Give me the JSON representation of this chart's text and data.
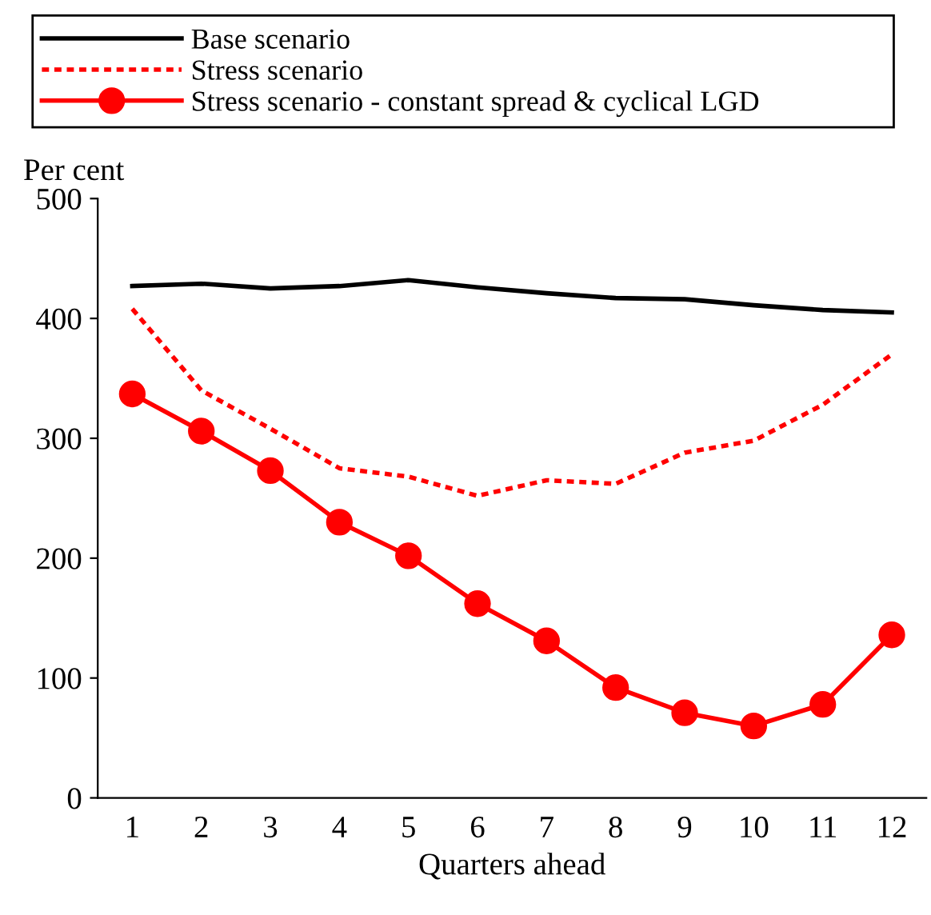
{
  "chart_data": {
    "type": "line",
    "ylabel": "Per cent",
    "xlabel": "Quarters ahead",
    "categories": [
      "1",
      "2",
      "3",
      "4",
      "5",
      "6",
      "7",
      "8",
      "9",
      "10",
      "11",
      "12"
    ],
    "series": [
      {
        "name": "Base scenario",
        "color": "#000000",
        "line_style": "solid",
        "marker": "none",
        "values": [
          427,
          429,
          425,
          427,
          432,
          426,
          421,
          417,
          416,
          411,
          407,
          405
        ]
      },
      {
        "name": "Stress scenario",
        "color": "#ff0000",
        "line_style": "dotted",
        "marker": "none",
        "values": [
          408,
          340,
          308,
          275,
          268,
          252,
          265,
          262,
          288,
          298,
          328,
          370
        ]
      },
      {
        "name": "Stress scenario - constant spread & cyclical LGD",
        "color": "#ff0000",
        "line_style": "solid",
        "marker": "circle",
        "values": [
          337,
          306,
          273,
          230,
          202,
          162,
          131,
          92,
          71,
          60,
          78,
          136
        ]
      }
    ],
    "ylim": [
      0,
      500
    ],
    "yticks": [
      0,
      100,
      200,
      300,
      400,
      500
    ],
    "grid": false,
    "legend": "top"
  }
}
